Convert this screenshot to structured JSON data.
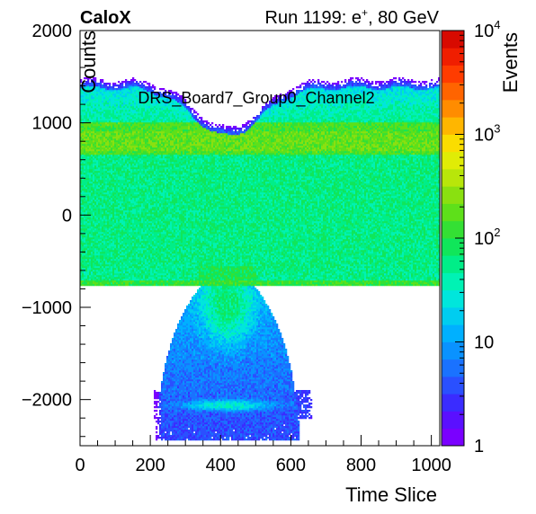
{
  "header": {
    "experiment": "CaloX",
    "run_prefix": "Run 1199: e",
    "run_sup": "+",
    "run_suffix": ", 80 GeV"
  },
  "chart_data": {
    "type": "heatmap",
    "title": "DRS_Board7_Group0_Channel2",
    "xlabel": "Time Slice",
    "ylabel": "Counts",
    "zlabel": "Events",
    "xlim": [
      0,
      1024
    ],
    "ylim": [
      -2500,
      2000
    ],
    "zlim": [
      1,
      10000
    ],
    "z_scale": "log",
    "grid": false,
    "x_ticks": [
      0,
      200,
      400,
      600,
      800,
      1000
    ],
    "x_tick_labels": [
      "0",
      "200",
      "400",
      "600",
      "800",
      "1000"
    ],
    "y_ticks": [
      -2000,
      -1000,
      0,
      1000,
      2000
    ],
    "y_tick_labels": [
      "−2000",
      "−1000",
      "0",
      "1000",
      "2000"
    ],
    "z_tick_labels": [
      {
        "base": "1",
        "exp": "",
        "value": 1
      },
      {
        "base": "10",
        "exp": "",
        "value": 10
      },
      {
        "base": "10",
        "exp": "2",
        "value": 100
      },
      {
        "base": "10",
        "exp": "3",
        "value": 1000
      },
      {
        "base": "10",
        "exp": "4",
        "value": 10000
      }
    ],
    "palette": [
      "#7a00ff",
      "#5a10ff",
      "#3a2cff",
      "#2a50ff",
      "#1a72ff",
      "#0a92ff",
      "#00b0ff",
      "#00cdf0",
      "#00e6dc",
      "#00f2b4",
      "#00ee88",
      "#10e65a",
      "#34e034",
      "#5ee01a",
      "#8ae010",
      "#b8e60a",
      "#e0ec06",
      "#fadd00",
      "#ffb600",
      "#ff8c00",
      "#ff6400",
      "#ff3c00",
      "#f01e00",
      "#d80a00"
    ],
    "features": [
      {
        "name": "baseline band",
        "x_range": [
          0,
          1024
        ],
        "y_range": [
          -750,
          900
        ],
        "events_approx": 150
      },
      {
        "name": "pulse tail",
        "x_range": [
          220,
          640
        ],
        "y_range": [
          -2450,
          -750
        ],
        "events_approx": 10
      },
      {
        "name": "saturation blob",
        "x_range": [
          330,
          520
        ],
        "y_range": [
          -2150,
          -1980
        ],
        "events_approx": 25
      }
    ]
  }
}
